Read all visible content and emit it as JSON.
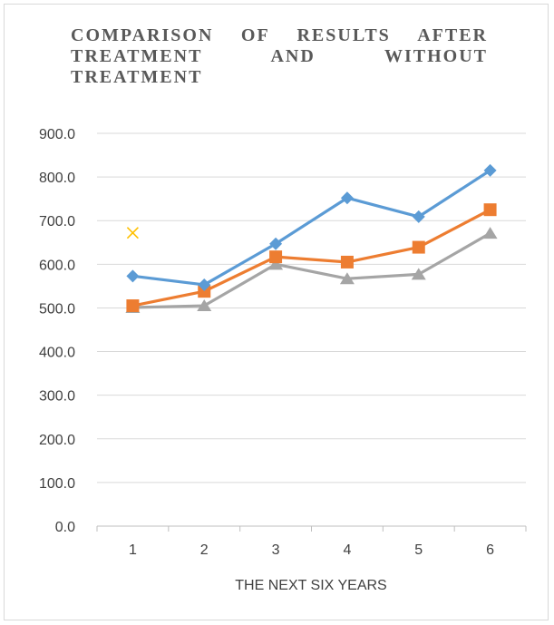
{
  "chart_data": {
    "type": "line",
    "title": "COMPARISON OF RESULTS AFTER TREATMENT AND WITHOUT TREATMENT",
    "xlabel": "THE NEXT SIX YEARS",
    "ylabel": "",
    "categories": [
      "1",
      "2",
      "3",
      "4",
      "5",
      "6"
    ],
    "ylim": [
      0,
      900
    ],
    "yticks": [
      "0.0",
      "100.0",
      "200.0",
      "300.0",
      "400.0",
      "500.0",
      "600.0",
      "700.0",
      "800.0",
      "900.0"
    ],
    "grid": true,
    "legend": "none",
    "series": [
      {
        "values": [
          573,
          553,
          647,
          752,
          709,
          815
        ],
        "color": "#5b9bd5",
        "marker": "diamond"
      },
      {
        "values": [
          505,
          538,
          617,
          605,
          639,
          725
        ],
        "color": "#ed7d31",
        "marker": "square"
      },
      {
        "values": [
          501,
          505,
          600,
          567,
          577,
          671
        ],
        "color": "#a5a5a5",
        "marker": "triangle"
      }
    ],
    "extra_points": [
      {
        "x": "1",
        "y": 672,
        "color": "#ffc000",
        "marker": "x"
      }
    ]
  }
}
